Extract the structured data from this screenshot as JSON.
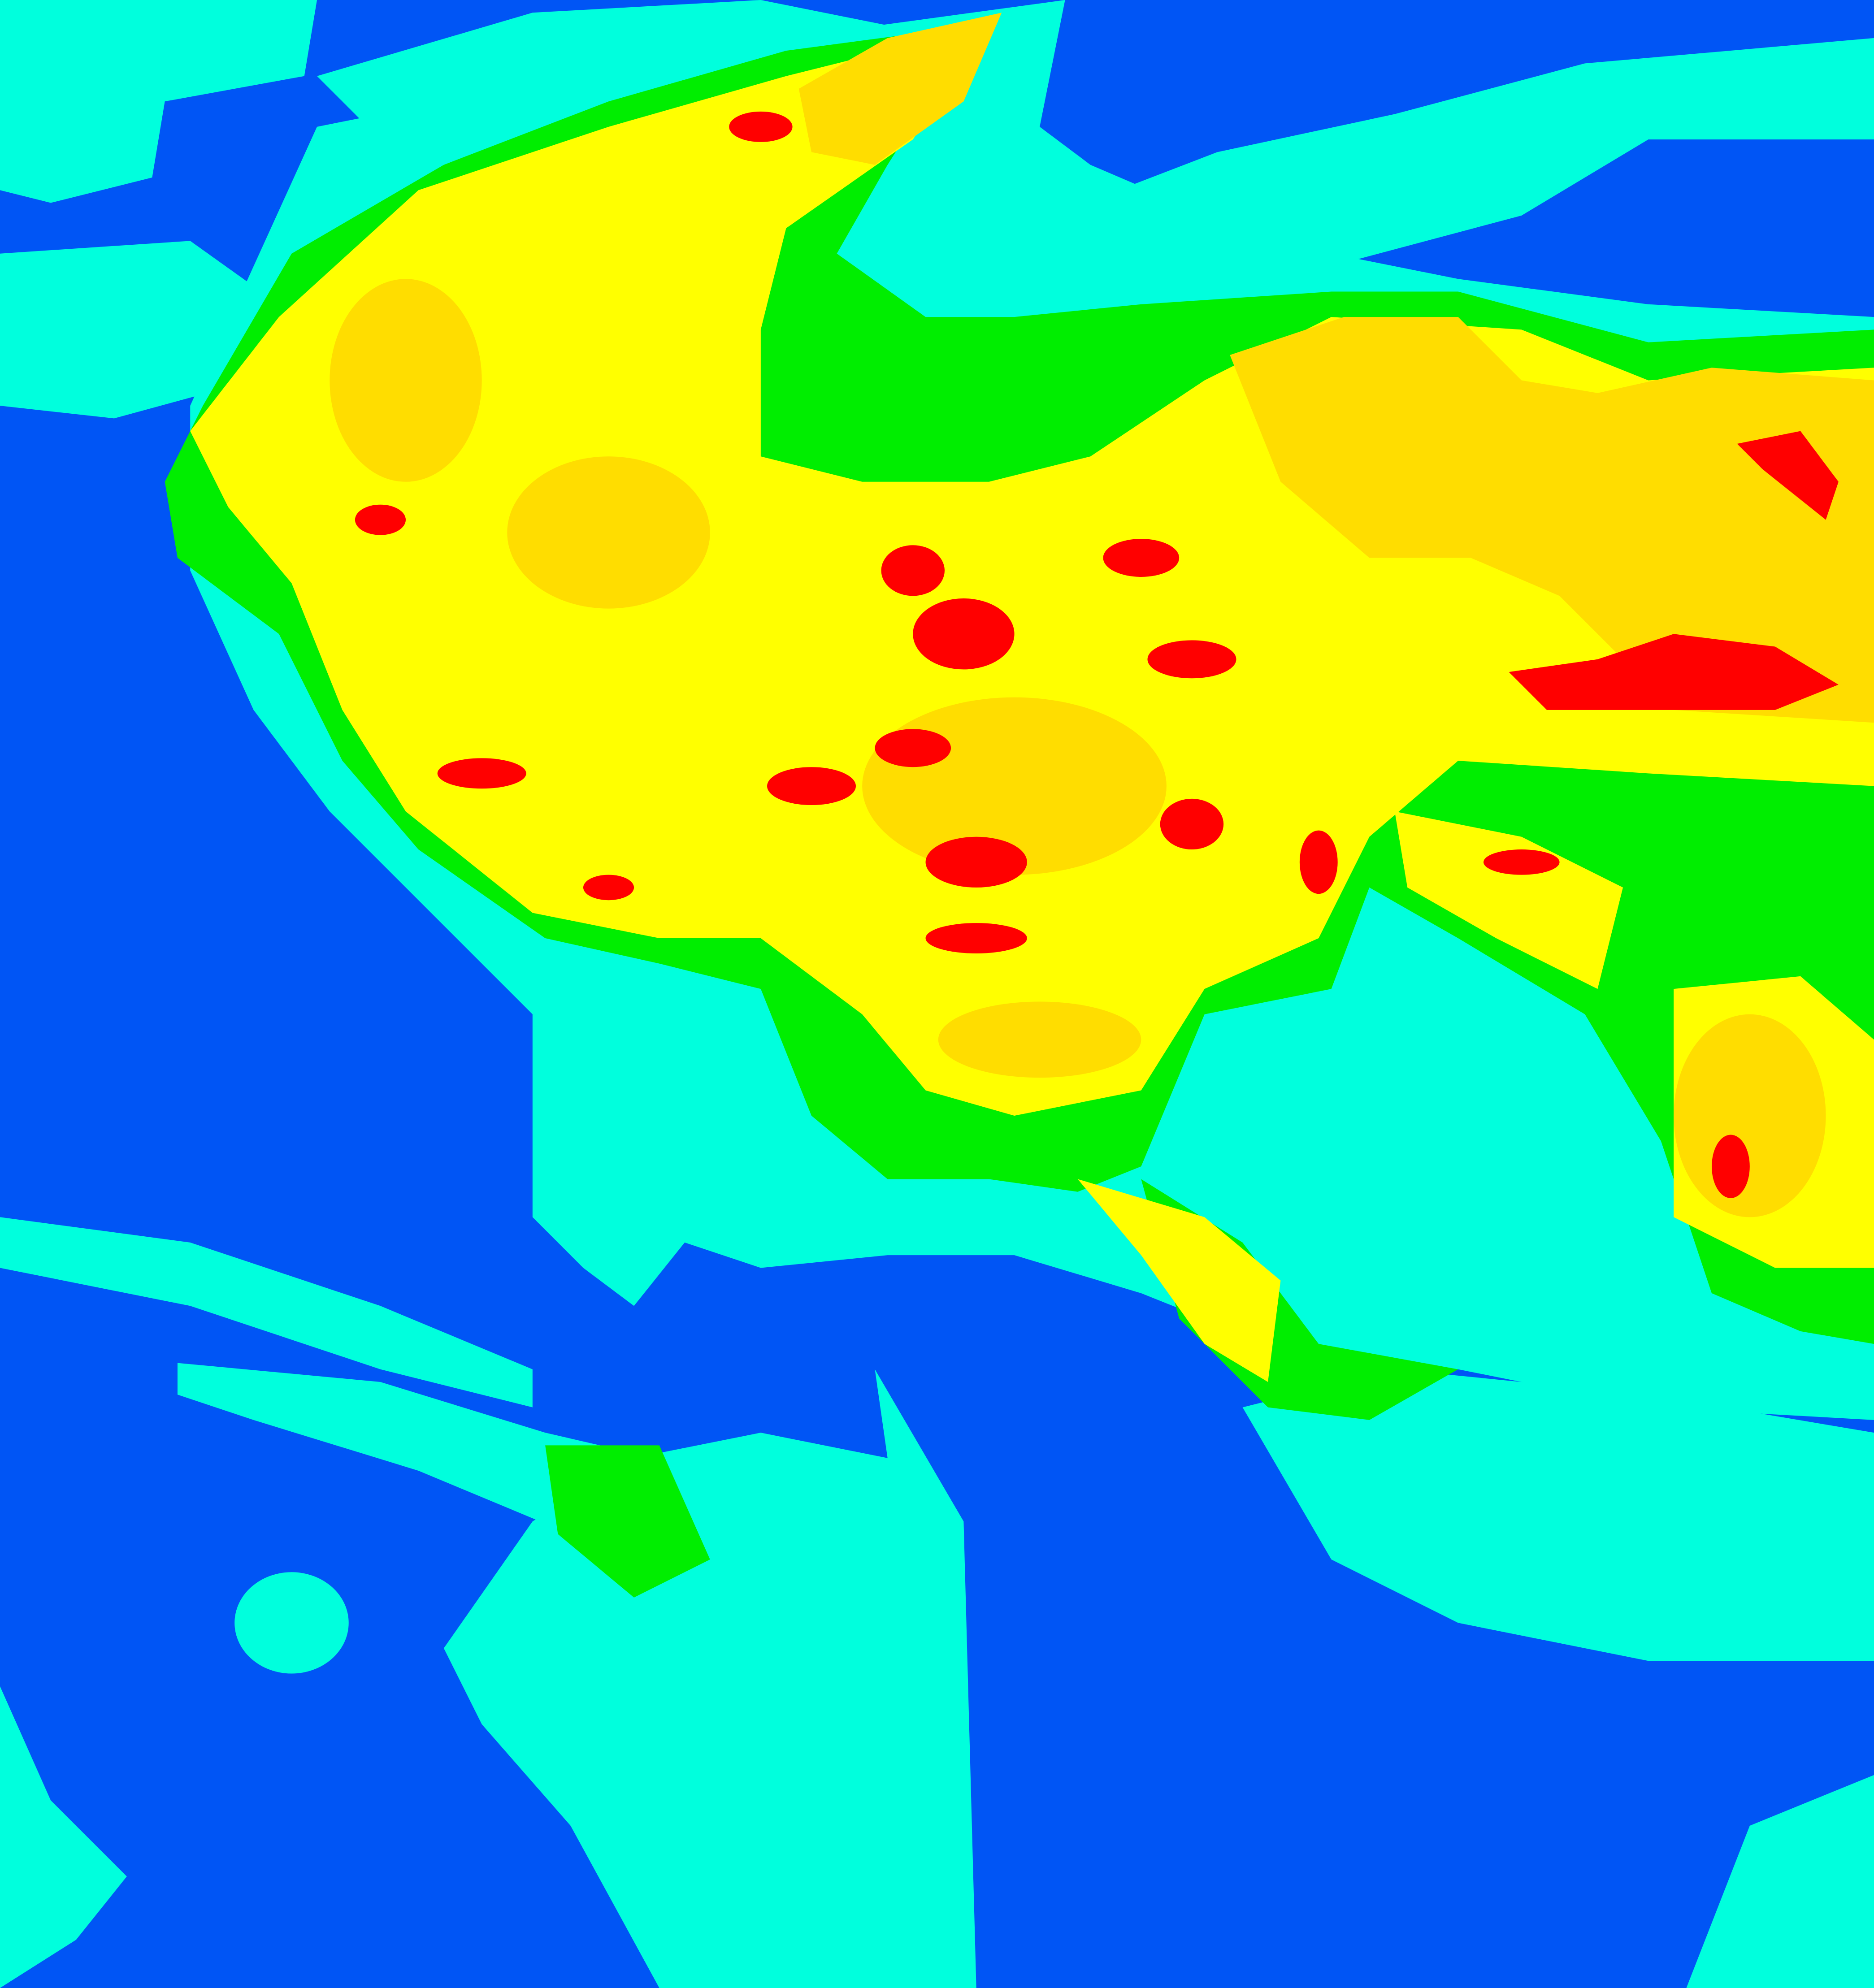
{
  "map": {
    "type": "classified satellite cloud-top imagery",
    "palette": {
      "background_clear": "#0055f5",
      "class_low": "#00ffdd",
      "class_mid": "#00ee00",
      "class_high": "#ffff00",
      "class_higher": "#ffdd00",
      "class_highest": "#ff0000"
    }
  }
}
